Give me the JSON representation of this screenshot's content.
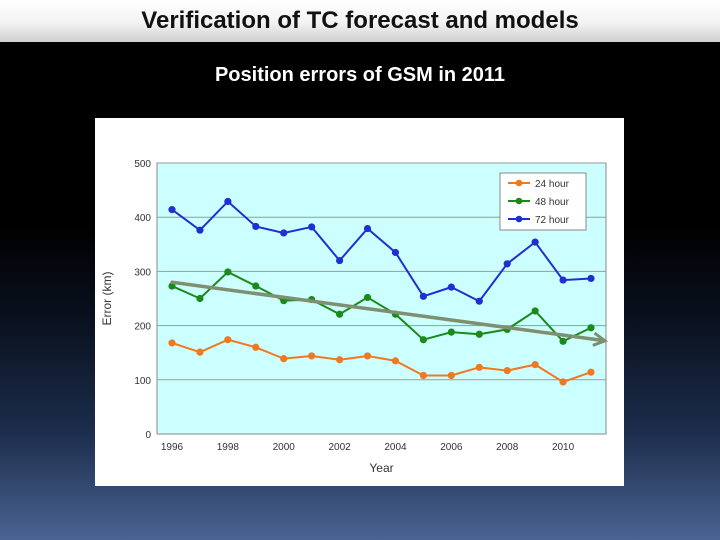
{
  "slide": {
    "title": "Verification of TC forecast and models",
    "subtitle": "Position errors of GSM in 2011"
  },
  "chart_data": {
    "type": "line",
    "title": "",
    "xlabel": "Year",
    "ylabel": "Error (km)",
    "x": [
      1996,
      1997,
      1998,
      1999,
      2000,
      2001,
      2002,
      2003,
      2004,
      2005,
      2006,
      2007,
      2008,
      2009,
      2010,
      2011
    ],
    "x_tick_labels": [
      "1996",
      "1998",
      "2000",
      "2002",
      "2004",
      "2006",
      "2008",
      "2010"
    ],
    "y_tick_labels": [
      "0",
      "100",
      "200",
      "300",
      "400",
      "500"
    ],
    "ylim": [
      0,
      500
    ],
    "grid": true,
    "legend_position": "top-right",
    "background_color": "#ccffff",
    "series": [
      {
        "name": "24 hour",
        "color": "#f07820",
        "values": [
          168,
          151,
          174,
          160,
          139,
          144,
          137,
          144,
          135,
          108,
          108,
          123,
          117,
          128,
          96,
          114
        ]
      },
      {
        "name": "48 hour",
        "color": "#1a8a1a",
        "values": [
          273,
          250,
          299,
          273,
          246,
          248,
          221,
          252,
          221,
          174,
          188,
          184,
          193,
          227,
          171,
          196
        ]
      },
      {
        "name": "72 hour",
        "color": "#1f2fd0",
        "values": [
          414,
          376,
          429,
          383,
          371,
          382,
          320,
          379,
          335,
          254,
          271,
          245,
          314,
          354,
          284,
          287
        ]
      }
    ],
    "trend": {
      "x": [
        1996,
        2011.5
      ],
      "values": [
        280,
        172
      ],
      "color": "#7f8f6f"
    }
  }
}
